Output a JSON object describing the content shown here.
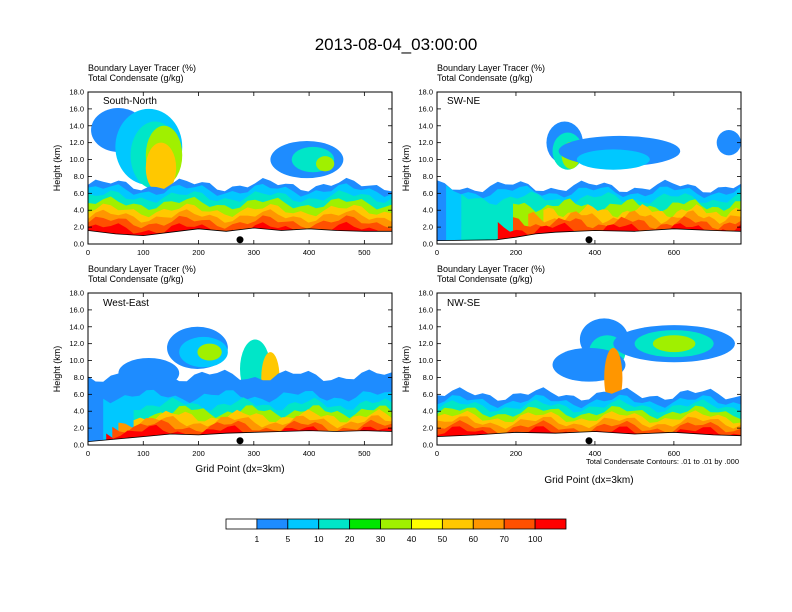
{
  "title": "2013-08-04_03:00:00",
  "colors": {
    "levels": [
      "#ffffff",
      "#1e8cff",
      "#00c8ff",
      "#00e6c8",
      "#00e600",
      "#a0f000",
      "#ffff00",
      "#ffc800",
      "#ff9600",
      "#ff5000",
      "#ff0000"
    ]
  },
  "colorbar": {
    "labels": [
      "1",
      "5",
      "10",
      "20",
      "30",
      "40",
      "50",
      "60",
      "70",
      "100"
    ]
  },
  "footnote": "Total Condensate Contours: .01 to .01 by .000",
  "chart_data": [
    {
      "type": "heatmap",
      "label": "South-North",
      "header_line1": "Boundary Layer Tracer    (%)",
      "header_line2": "Total Condensate    (g/kg)",
      "ylabel": "Height (km)",
      "xlabel": "",
      "xlim": [
        0,
        550
      ],
      "ylim": [
        0,
        18
      ],
      "xticks": [
        "0",
        "100",
        "200",
        "300",
        "400",
        "500"
      ],
      "yticks": [
        "0.0",
        "2.0",
        "4.0",
        "6.0",
        "8.0",
        "10.0",
        "12.0",
        "14.0",
        "16.0",
        "18.0"
      ],
      "marker_x": 275,
      "terrain": [
        [
          0,
          1.6
        ],
        [
          50,
          1.2
        ],
        [
          100,
          1.0
        ],
        [
          150,
          1.4
        ],
        [
          200,
          1.8
        ],
        [
          250,
          1.5
        ],
        [
          300,
          1.9
        ],
        [
          350,
          1.6
        ],
        [
          400,
          1.8
        ],
        [
          450,
          1.6
        ],
        [
          500,
          1.5
        ],
        [
          550,
          1.5
        ]
      ]
    },
    {
      "type": "heatmap",
      "label": "SW-NE",
      "header_line1": "Boundary Layer Tracer    (%)",
      "header_line2": "Total Condensate    (g/kg)",
      "ylabel": "Height (km)",
      "xlabel": "",
      "xlim": [
        0,
        770
      ],
      "ylim": [
        0,
        18
      ],
      "xticks": [
        "0",
        "200",
        "400",
        "600"
      ],
      "yticks": [
        "0.0",
        "2.0",
        "4.0",
        "6.0",
        "8.0",
        "10.0",
        "12.0",
        "14.0",
        "16.0",
        "18.0"
      ],
      "marker_x": 385,
      "terrain": [
        [
          0,
          0.4
        ],
        [
          150,
          0.5
        ],
        [
          200,
          0.8
        ],
        [
          250,
          1.2
        ],
        [
          300,
          1.4
        ],
        [
          400,
          1.6
        ],
        [
          500,
          1.5
        ],
        [
          600,
          1.8
        ],
        [
          700,
          1.6
        ],
        [
          770,
          1.5
        ]
      ]
    },
    {
      "type": "heatmap",
      "label": "West-East",
      "header_line1": "Boundary Layer Tracer    (%)",
      "header_line2": "Total Condensate    (g/kg)",
      "ylabel": "Height (km)",
      "xlabel": "Grid Point (dx=3km)",
      "xlim": [
        0,
        550
      ],
      "ylim": [
        0,
        18
      ],
      "xticks": [
        "0",
        "100",
        "200",
        "300",
        "400",
        "500"
      ],
      "yticks": [
        "0.0",
        "2.0",
        "4.0",
        "6.0",
        "8.0",
        "10.0",
        "12.0",
        "14.0",
        "16.0",
        "18.0"
      ],
      "marker_x": 275,
      "terrain": [
        [
          0,
          0.4
        ],
        [
          50,
          0.7
        ],
        [
          100,
          1.0
        ],
        [
          150,
          1.3
        ],
        [
          200,
          1.2
        ],
        [
          250,
          1.4
        ],
        [
          300,
          1.5
        ],
        [
          350,
          1.6
        ],
        [
          400,
          1.7
        ],
        [
          450,
          1.6
        ],
        [
          500,
          1.7
        ],
        [
          550,
          1.6
        ]
      ]
    },
    {
      "type": "heatmap",
      "label": "NW-SE",
      "header_line1": "Boundary Layer Tracer    (%)",
      "header_line2": "Total Condensate    (g/kg)",
      "ylabel": "Height (km)",
      "xlabel": "Grid Point (dx=3km)",
      "xlim": [
        0,
        770
      ],
      "ylim": [
        0,
        18
      ],
      "xticks": [
        "0",
        "200",
        "400",
        "600"
      ],
      "yticks": [
        "0.0",
        "2.0",
        "4.0",
        "6.0",
        "8.0",
        "10.0",
        "12.0",
        "14.0",
        "16.0",
        "18.0"
      ],
      "marker_x": 385,
      "terrain": [
        [
          0,
          1.0
        ],
        [
          100,
          1.2
        ],
        [
          200,
          1.5
        ],
        [
          300,
          1.4
        ],
        [
          400,
          1.6
        ],
        [
          500,
          1.3
        ],
        [
          600,
          1.5
        ],
        [
          700,
          1.2
        ],
        [
          770,
          1.1
        ]
      ]
    }
  ]
}
